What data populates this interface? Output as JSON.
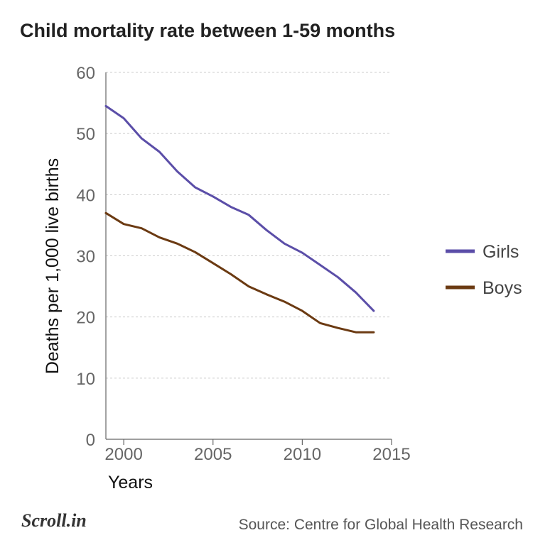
{
  "chart_data": {
    "type": "line",
    "title": "Child mortality rate between 1-59 months",
    "xlabel": "Years",
    "ylabel": "Deaths per 1,000 live births",
    "xlim": [
      1999,
      2015
    ],
    "ylim": [
      0,
      60
    ],
    "x_ticks": [
      2000,
      2005,
      2010,
      2015
    ],
    "y_ticks": [
      0,
      10,
      20,
      30,
      40,
      50,
      60
    ],
    "x": [
      1999,
      2000,
      2001,
      2002,
      2003,
      2004,
      2005,
      2006,
      2007,
      2008,
      2009,
      2010,
      2011,
      2012,
      2013,
      2014,
      2015
    ],
    "series": [
      {
        "name": "Girls",
        "color": "#5b4ea8",
        "values": [
          54.5,
          52.5,
          49.2,
          47.0,
          43.8,
          41.2,
          39.7,
          38.0,
          36.7,
          34.2,
          32.0,
          30.5,
          28.5,
          26.5,
          24.0,
          21.0,
          null
        ]
      },
      {
        "name": "Boys",
        "color": "#6b3a12",
        "values": [
          37.0,
          35.2,
          34.5,
          33.0,
          32.0,
          30.6,
          28.8,
          27.0,
          25.0,
          23.7,
          22.5,
          21.0,
          19.0,
          18.2,
          17.5,
          17.5,
          null
        ]
      }
    ],
    "grid": "horizontal dashed",
    "legend": "right"
  },
  "source": "Source: Centre for Global Health Research",
  "logo": "Scroll.in"
}
